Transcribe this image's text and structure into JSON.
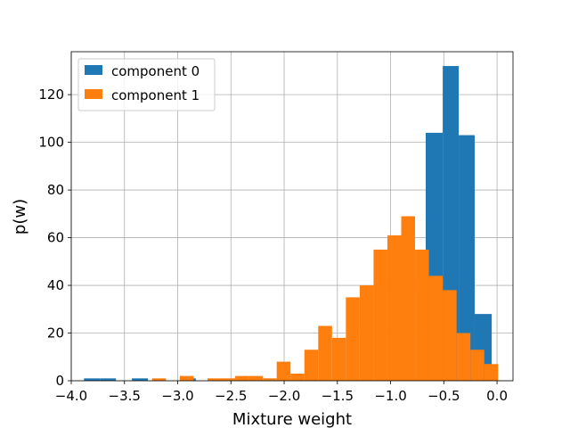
{
  "chart_data": {
    "type": "bar",
    "subtype": "histogram",
    "xlabel": "Mixture weight",
    "ylabel": "p(w)",
    "xlim": [
      -4.0,
      0.15
    ],
    "ylim": [
      0,
      138
    ],
    "x_ticks": [
      -4.0,
      -3.5,
      -3.0,
      -2.5,
      -2.0,
      -1.5,
      -1.0,
      -0.5,
      0.0
    ],
    "x_tick_labels": [
      "−4.0",
      "−3.5",
      "−3.0",
      "−2.5",
      "−2.0",
      "−1.5",
      "−1.0",
      "−0.5",
      "0.0"
    ],
    "y_ticks": [
      0,
      20,
      40,
      60,
      80,
      100,
      120
    ],
    "y_tick_labels": [
      "0",
      "20",
      "40",
      "60",
      "80",
      "100",
      "120"
    ],
    "grid": true,
    "legend": "upper-left",
    "series": [
      {
        "name": "component 0",
        "color": "#1f77b4",
        "bins": [
          {
            "x0": -3.88,
            "x1": -3.73,
            "value": 1
          },
          {
            "x0": -3.73,
            "x1": -3.58,
            "value": 1
          },
          {
            "x0": -3.43,
            "x1": -3.28,
            "value": 1
          },
          {
            "x0": -2.98,
            "x1": -2.83,
            "value": 1
          },
          {
            "x0": -0.67,
            "x1": -0.51,
            "value": 104
          },
          {
            "x0": -0.51,
            "x1": -0.36,
            "value": 132
          },
          {
            "x0": -0.36,
            "x1": -0.21,
            "value": 103
          },
          {
            "x0": -0.21,
            "x1": -0.05,
            "value": 28
          }
        ]
      },
      {
        "name": "component 1",
        "color": "#ff7f0e",
        "bins": [
          {
            "x0": -3.24,
            "x1": -3.11,
            "value": 1
          },
          {
            "x0": -2.98,
            "x1": -2.85,
            "value": 2
          },
          {
            "x0": -2.72,
            "x1": -2.59,
            "value": 1
          },
          {
            "x0": -2.59,
            "x1": -2.46,
            "value": 1
          },
          {
            "x0": -2.46,
            "x1": -2.33,
            "value": 2
          },
          {
            "x0": -2.33,
            "x1": -2.2,
            "value": 2
          },
          {
            "x0": -2.2,
            "x1": -2.07,
            "value": 1
          },
          {
            "x0": -2.07,
            "x1": -1.94,
            "value": 8
          },
          {
            "x0": -1.94,
            "x1": -1.81,
            "value": 3
          },
          {
            "x0": -1.81,
            "x1": -1.68,
            "value": 13
          },
          {
            "x0": -1.68,
            "x1": -1.55,
            "value": 23
          },
          {
            "x0": -1.55,
            "x1": -1.42,
            "value": 18
          },
          {
            "x0": -1.42,
            "x1": -1.29,
            "value": 35
          },
          {
            "x0": -1.29,
            "x1": -1.16,
            "value": 40
          },
          {
            "x0": -1.16,
            "x1": -1.03,
            "value": 55
          },
          {
            "x0": -1.03,
            "x1": -0.9,
            "value": 61
          },
          {
            "x0": -0.9,
            "x1": -0.77,
            "value": 69
          },
          {
            "x0": -0.77,
            "x1": -0.64,
            "value": 55
          },
          {
            "x0": -0.64,
            "x1": -0.51,
            "value": 44
          },
          {
            "x0": -0.51,
            "x1": -0.38,
            "value": 38
          },
          {
            "x0": -0.38,
            "x1": -0.25,
            "value": 20
          },
          {
            "x0": -0.25,
            "x1": -0.12,
            "value": 13
          },
          {
            "x0": -0.12,
            "x1": 0.01,
            "value": 7
          }
        ]
      }
    ]
  }
}
